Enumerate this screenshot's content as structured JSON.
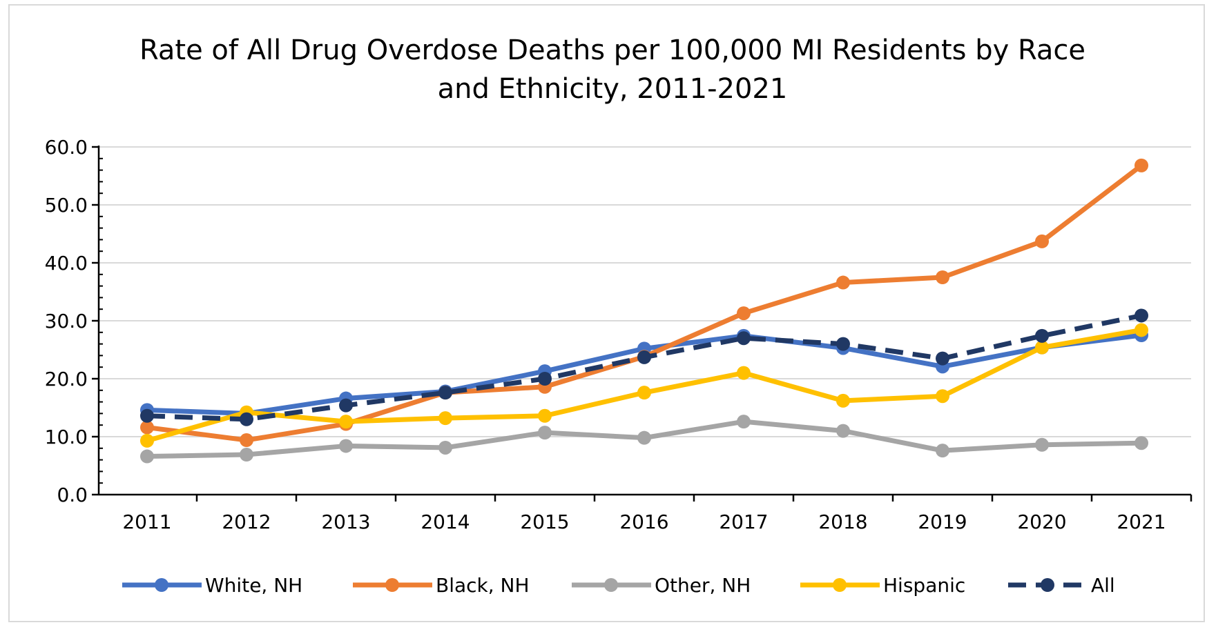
{
  "chart_data": {
    "type": "line",
    "title_lines": [
      "Rate of All Drug Overdose Deaths per 100,000 MI Residents by Race",
      "and Ethnicity, 2011-2021"
    ],
    "xlabel": "",
    "ylabel": "",
    "x": [
      "2011",
      "2012",
      "2013",
      "2014",
      "2015",
      "2016",
      "2017",
      "2018",
      "2019",
      "2020",
      "2021"
    ],
    "ylim": [
      0,
      60
    ],
    "yticks": [
      "0.0",
      "10.0",
      "20.0",
      "30.0",
      "40.0",
      "50.0",
      "60.0"
    ],
    "ytick_values": [
      0,
      10,
      20,
      30,
      40,
      50,
      60
    ],
    "grid": true,
    "legend_position": "bottom",
    "series": [
      {
        "name": "White, NH",
        "color": "#4472c4",
        "dashed": false,
        "values": [
          14.6,
          14.0,
          16.6,
          17.8,
          21.3,
          25.2,
          27.4,
          25.3,
          22.1,
          25.4,
          27.5
        ]
      },
      {
        "name": "Black, NH",
        "color": "#ed7d31",
        "dashed": false,
        "values": [
          11.6,
          9.4,
          12.2,
          17.6,
          18.6,
          23.8,
          31.3,
          36.6,
          37.5,
          43.7,
          56.8
        ]
      },
      {
        "name": "Other, NH",
        "color": "#a5a5a5",
        "dashed": false,
        "values": [
          6.6,
          6.9,
          8.4,
          8.1,
          10.7,
          9.8,
          12.6,
          11.0,
          7.6,
          8.6,
          8.9
        ]
      },
      {
        "name": "Hispanic",
        "color": "#ffc000",
        "dashed": false,
        "values": [
          9.3,
          14.2,
          12.6,
          13.2,
          13.6,
          17.6,
          21.0,
          16.2,
          17.0,
          25.4,
          28.4
        ]
      },
      {
        "name": "All",
        "color": "#203864",
        "dashed": true,
        "values": [
          13.6,
          13.0,
          15.4,
          17.6,
          20.0,
          23.7,
          27.0,
          26.0,
          23.5,
          27.4,
          30.9
        ]
      }
    ]
  }
}
